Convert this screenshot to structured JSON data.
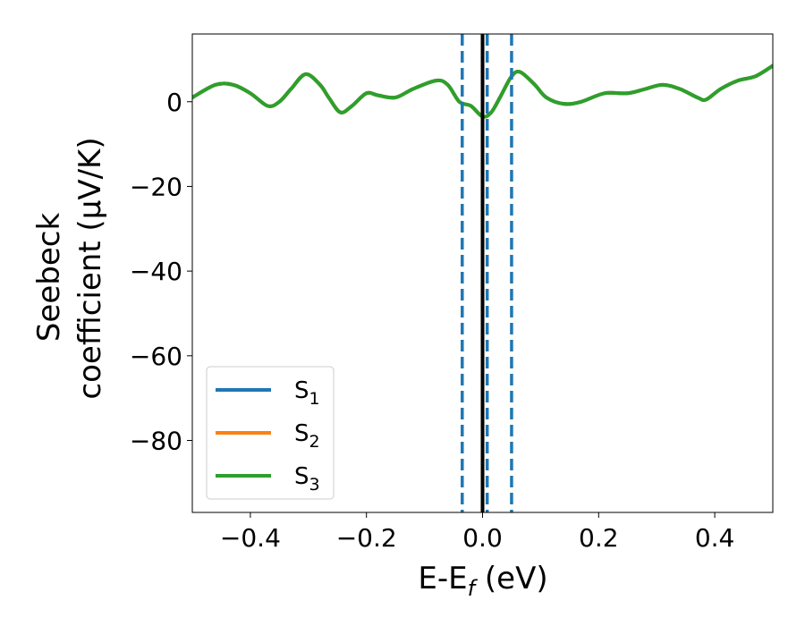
{
  "chart_data": {
    "type": "line",
    "xlabel": {
      "main": "E-E",
      "sub": "f",
      "tail": " (eV)"
    },
    "ylabel": {
      "line1": "Seebeck",
      "line2": "coefficient  (μV/K)"
    },
    "xlim": [
      -0.5,
      0.5
    ],
    "ylim": [
      -97,
      16
    ],
    "xticks": [
      -0.4,
      -0.2,
      0.0,
      0.2,
      0.4
    ],
    "xtick_labels": [
      "−0.4",
      "−0.2",
      "0.0",
      "0.2",
      "0.4"
    ],
    "yticks": [
      0,
      -20,
      -40,
      -60,
      -80
    ],
    "ytick_labels": [
      "0",
      "−20",
      "−40",
      "−60",
      "−80"
    ],
    "grid": false,
    "legend_position": "lower-left",
    "vertical_lines": [
      {
        "x": 0.0,
        "color": "#000000",
        "style": "solid"
      },
      {
        "x": -0.035,
        "color": "#1f77b4",
        "style": "dashed"
      },
      {
        "x": 0.008,
        "color": "#1f77b4",
        "style": "dashed"
      },
      {
        "x": 0.05,
        "color": "#1f77b4",
        "style": "dashed"
      }
    ],
    "series": [
      {
        "name": "S",
        "sub": "1",
        "color": "#1f77b4",
        "x": [
          -0.5,
          -0.46,
          -0.43,
          -0.4,
          -0.37,
          -0.35,
          -0.33,
          -0.305,
          -0.28,
          -0.265,
          -0.245,
          -0.225,
          -0.2,
          -0.18,
          -0.15,
          -0.12,
          -0.08,
          -0.06,
          -0.04,
          -0.02,
          0.0,
          0.015,
          0.03,
          0.05,
          0.065,
          0.09,
          0.11,
          0.14,
          0.17,
          0.21,
          0.25,
          0.28,
          0.31,
          0.34,
          0.37,
          0.385,
          0.41,
          0.44,
          0.47,
          0.5
        ],
        "y": [
          1,
          4,
          4,
          2,
          -1,
          0,
          3,
          6.5,
          4,
          1,
          -2.5,
          -1,
          2,
          1.5,
          1,
          3,
          5,
          4,
          0,
          -1,
          -3.5,
          -2.5,
          1,
          6,
          7,
          4,
          1,
          -0.5,
          0,
          2,
          2,
          3,
          4,
          3,
          1,
          0.5,
          3,
          5,
          6,
          8.5
        ]
      },
      {
        "name": "S",
        "sub": "2",
        "color": "#ff7f0e",
        "x": [
          -0.5,
          -0.46,
          -0.43,
          -0.4,
          -0.37,
          -0.35,
          -0.33,
          -0.305,
          -0.28,
          -0.265,
          -0.245,
          -0.225,
          -0.2,
          -0.18,
          -0.15,
          -0.12,
          -0.08,
          -0.06,
          -0.04,
          -0.02,
          0.0,
          0.015,
          0.03,
          0.05,
          0.065,
          0.09,
          0.11,
          0.14,
          0.17,
          0.21,
          0.25,
          0.28,
          0.31,
          0.34,
          0.37,
          0.385,
          0.41,
          0.44,
          0.47,
          0.5
        ],
        "y": [
          1,
          4,
          4,
          2,
          -1,
          0,
          3,
          6.5,
          4,
          1,
          -2.5,
          -1,
          2,
          1.5,
          1,
          3,
          5,
          4,
          0,
          -1,
          -3.5,
          -2.5,
          1,
          6,
          7,
          4,
          1,
          -0.5,
          0,
          2,
          2,
          3,
          4,
          3,
          1,
          0.5,
          3,
          5,
          6,
          8.5
        ]
      },
      {
        "name": "S",
        "sub": "3",
        "color": "#2ca02c",
        "x": [
          -0.5,
          -0.46,
          -0.43,
          -0.4,
          -0.37,
          -0.35,
          -0.33,
          -0.305,
          -0.28,
          -0.265,
          -0.245,
          -0.225,
          -0.2,
          -0.18,
          -0.15,
          -0.12,
          -0.08,
          -0.06,
          -0.04,
          -0.02,
          0.0,
          0.015,
          0.03,
          0.05,
          0.065,
          0.09,
          0.11,
          0.14,
          0.17,
          0.21,
          0.25,
          0.28,
          0.31,
          0.34,
          0.37,
          0.385,
          0.41,
          0.44,
          0.47,
          0.5
        ],
        "y": [
          1,
          4,
          4,
          2,
          -1,
          0,
          3,
          6.5,
          4,
          1,
          -2.5,
          -1,
          2,
          1.5,
          1,
          3,
          5,
          4,
          0,
          -1,
          -3.5,
          -2.5,
          1,
          6,
          7,
          4,
          1,
          -0.5,
          0,
          2,
          2,
          3,
          4,
          3,
          1,
          0.5,
          3,
          5,
          6,
          8.5
        ]
      }
    ]
  }
}
